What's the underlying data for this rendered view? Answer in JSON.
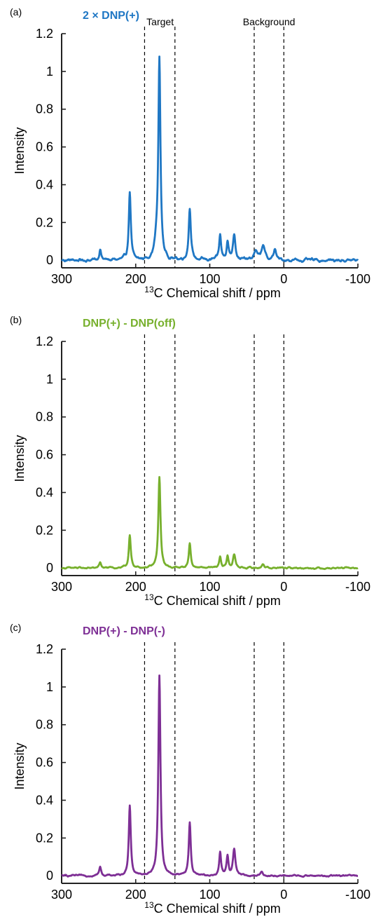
{
  "chart_data": [
    {
      "type": "line",
      "panel_label": "(a)",
      "title": "2 × DNP(+)",
      "xlabel": "C Chemical shift / ppm",
      "xlabel_superscript": "13",
      "ylabel": "Intensity",
      "xlim": [
        300,
        -100
      ],
      "ylim": [
        -0.04,
        1.2
      ],
      "xticks": [
        "300",
        "200",
        "100",
        "0",
        "-100"
      ],
      "yticks": [
        "0",
        "0.2",
        "0.4",
        "0.6",
        "0.8",
        "1",
        "1.2"
      ],
      "color": "#1f77c4",
      "dashed_lines_ppm": [
        188,
        147,
        40,
        0
      ],
      "region_labels": [
        {
          "text": "Target",
          "center_ppm": 167
        },
        {
          "text": "Background",
          "center_ppm": 20
        }
      ],
      "baseline_noise": 0.012,
      "peaks": [
        {
          "ppm": 248,
          "height": 0.06,
          "width": 1.5
        },
        {
          "ppm": 208,
          "height": 0.36,
          "width": 1.6
        },
        {
          "ppm": 172,
          "height": 0.07,
          "width": 3
        },
        {
          "ppm": 168,
          "height": 1.05,
          "width": 1.7
        },
        {
          "ppm": 127,
          "height": 0.28,
          "width": 1.7
        },
        {
          "ppm": 86,
          "height": 0.13,
          "width": 1.6
        },
        {
          "ppm": 76,
          "height": 0.1,
          "width": 1.6
        },
        {
          "ppm": 67,
          "height": 0.14,
          "width": 2.0
        },
        {
          "ppm": 38,
          "height": 0.05,
          "width": 2.5
        },
        {
          "ppm": 28,
          "height": 0.08,
          "width": 2.5
        },
        {
          "ppm": 12,
          "height": 0.06,
          "width": 1.8
        }
      ]
    },
    {
      "type": "line",
      "panel_label": "(b)",
      "title": "DNP(+) - DNP(off)",
      "xlabel": "C Chemical shift / ppm",
      "xlabel_superscript": "13",
      "ylabel": "Intensity",
      "xlim": [
        300,
        -100
      ],
      "ylim": [
        -0.04,
        1.2
      ],
      "xticks": [
        "300",
        "200",
        "100",
        "0",
        "-100"
      ],
      "yticks": [
        "0",
        "0.2",
        "0.4",
        "0.6",
        "0.8",
        "1",
        "1.2"
      ],
      "color": "#77b02d",
      "dashed_lines_ppm": [
        188,
        147,
        40,
        0
      ],
      "region_labels": [],
      "baseline_noise": 0.006,
      "peaks": [
        {
          "ppm": 248,
          "height": 0.03,
          "width": 1.5
        },
        {
          "ppm": 208,
          "height": 0.17,
          "width": 1.6
        },
        {
          "ppm": 168,
          "height": 0.48,
          "width": 1.7
        },
        {
          "ppm": 127,
          "height": 0.13,
          "width": 1.6
        },
        {
          "ppm": 86,
          "height": 0.06,
          "width": 1.5
        },
        {
          "ppm": 76,
          "height": 0.06,
          "width": 1.5
        },
        {
          "ppm": 67,
          "height": 0.07,
          "width": 2.0
        },
        {
          "ppm": 28,
          "height": 0.02,
          "width": 2.0
        }
      ]
    },
    {
      "type": "line",
      "panel_label": "(c)",
      "title": "DNP(+) - DNP(-)",
      "xlabel": "C Chemical shift / ppm",
      "xlabel_superscript": "13",
      "ylabel": "Intensity",
      "xlim": [
        300,
        -100
      ],
      "ylim": [
        -0.04,
        1.2
      ],
      "xticks": [
        "300",
        "200",
        "100",
        "0",
        "-100"
      ],
      "yticks": [
        "0",
        "0.2",
        "0.4",
        "0.6",
        "0.8",
        "1",
        "1.2"
      ],
      "color": "#7e2f95",
      "dashed_lines_ppm": [
        188,
        147,
        40,
        0
      ],
      "region_labels": [],
      "baseline_noise": 0.006,
      "peaks": [
        {
          "ppm": 248,
          "height": 0.05,
          "width": 1.5
        },
        {
          "ppm": 208,
          "height": 0.37,
          "width": 1.6
        },
        {
          "ppm": 168,
          "height": 1.06,
          "width": 1.7
        },
        {
          "ppm": 127,
          "height": 0.28,
          "width": 1.6
        },
        {
          "ppm": 86,
          "height": 0.12,
          "width": 1.5
        },
        {
          "ppm": 76,
          "height": 0.1,
          "width": 1.5
        },
        {
          "ppm": 67,
          "height": 0.14,
          "width": 2.0
        },
        {
          "ppm": 30,
          "height": 0.02,
          "width": 2.0
        }
      ]
    }
  ]
}
